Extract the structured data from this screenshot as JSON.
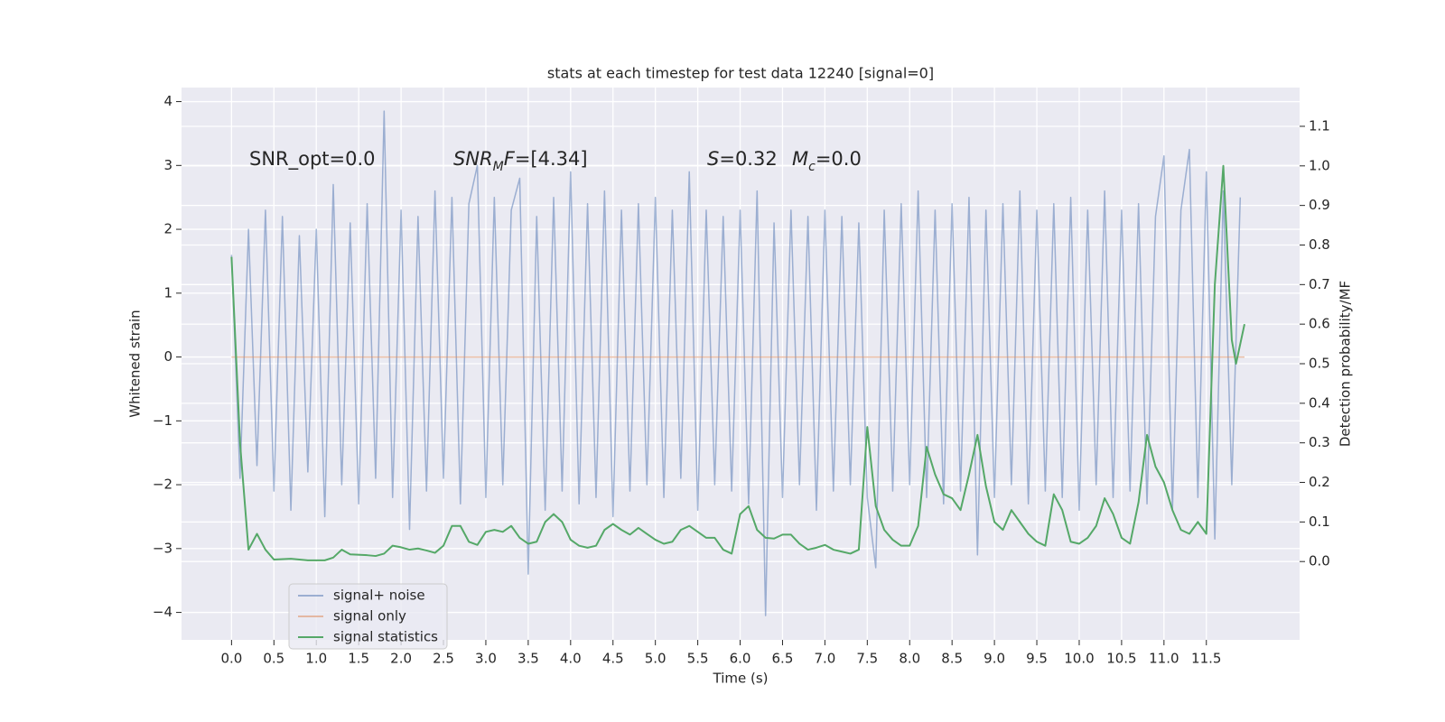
{
  "chart_data": {
    "type": "line",
    "title": "stats at each timestep for test data 12240 [signal=0]",
    "xlabel": "Time (s)",
    "ylabel": "Whitened strain",
    "y2label": "Detection probability/MF",
    "annotations": [
      [
        {
          "text": "SNR_opt=0.0",
          "italic": false,
          "sub": false
        }
      ],
      [
        {
          "text": "SNR",
          "italic": true,
          "sub": false
        },
        {
          "text": "M",
          "italic": true,
          "sub": true
        },
        {
          "text": "F",
          "italic": true,
          "sub": false
        },
        {
          "text": "=[4.34]",
          "italic": false,
          "sub": false
        }
      ],
      [
        {
          "text": "S",
          "italic": true,
          "sub": false
        },
        {
          "text": "=0.32",
          "italic": false,
          "sub": false
        }
      ],
      [
        {
          "text": "M",
          "italic": true,
          "sub": false
        },
        {
          "text": "c",
          "italic": true,
          "sub": true
        },
        {
          "text": "=0.0",
          "italic": false,
          "sub": false
        }
      ]
    ],
    "xlim": [
      -0.59,
      12.6
    ],
    "ylim": [
      -4.43,
      4.22
    ],
    "y2lim": [
      -0.198,
      1.198
    ],
    "xticks": [
      {
        "value": 0,
        "label": "0.0"
      },
      {
        "value": 0.5,
        "label": "0.5"
      },
      {
        "value": 1,
        "label": "1.0"
      },
      {
        "value": 1.5,
        "label": "1.5"
      },
      {
        "value": 2,
        "label": "2.0"
      },
      {
        "value": 2.5,
        "label": "2.5"
      },
      {
        "value": 3,
        "label": "3.0"
      },
      {
        "value": 3.5,
        "label": "3.5"
      },
      {
        "value": 4,
        "label": "4.0"
      },
      {
        "value": 4.5,
        "label": "4.5"
      },
      {
        "value": 5,
        "label": "5.0"
      },
      {
        "value": 5.5,
        "label": "5.5"
      },
      {
        "value": 6,
        "label": "6.0"
      },
      {
        "value": 6.5,
        "label": "6.5"
      },
      {
        "value": 7,
        "label": "7.0"
      },
      {
        "value": 7.5,
        "label": "7.5"
      },
      {
        "value": 8,
        "label": "8.0"
      },
      {
        "value": 8.5,
        "label": "8.5"
      },
      {
        "value": 9,
        "label": "9.0"
      },
      {
        "value": 9.5,
        "label": "9.5"
      },
      {
        "value": 10,
        "label": "10.0"
      },
      {
        "value": 10.5,
        "label": "10.5"
      },
      {
        "value": 11,
        "label": "11.0"
      },
      {
        "value": 11.5,
        "label": "11.5"
      }
    ],
    "yticks": [
      {
        "value": -4,
        "label": "−4"
      },
      {
        "value": -3,
        "label": "−3"
      },
      {
        "value": -2,
        "label": "−2"
      },
      {
        "value": -1,
        "label": "−1"
      },
      0,
      1,
      2,
      3,
      4
    ],
    "y2ticks": [
      {
        "value": 0,
        "label": "0.0"
      },
      {
        "value": 0.1,
        "label": "0.1"
      },
      {
        "value": 0.2,
        "label": "0.2"
      },
      {
        "value": 0.3,
        "label": "0.3"
      },
      {
        "value": 0.4,
        "label": "0.4"
      },
      {
        "value": 0.5,
        "label": "0.5"
      },
      {
        "value": 0.6,
        "label": "0.6"
      },
      {
        "value": 0.7,
        "label": "0.7"
      },
      {
        "value": 0.8,
        "label": "0.8"
      },
      {
        "value": 0.9,
        "label": "0.9"
      },
      {
        "value": 1,
        "label": "1.0"
      },
      {
        "value": 1.1,
        "label": "1.1"
      }
    ],
    "grid": true,
    "legend": "lower left",
    "series": [
      {
        "name": "signal+ noise",
        "color": "#4c72b0",
        "opacity": 0.5,
        "x": [
          0,
          0.1,
          0.2,
          0.3,
          0.4,
          0.5,
          0.6,
          0.7,
          0.8,
          0.9,
          1,
          1.1,
          1.2,
          1.3,
          1.4,
          1.5,
          1.6,
          1.7,
          1.8,
          1.9,
          2,
          2.1,
          2.2,
          2.3,
          2.4,
          2.5,
          2.6,
          2.7,
          2.8,
          2.9,
          3,
          3.1,
          3.2,
          3.3,
          3.4,
          3.5,
          3.6,
          3.7,
          3.8,
          3.9,
          4,
          4.1,
          4.2,
          4.3,
          4.4,
          4.5,
          4.6,
          4.7,
          4.8,
          4.9,
          5,
          5.1,
          5.2,
          5.3,
          5.4,
          5.5,
          5.6,
          5.7,
          5.8,
          5.9,
          6,
          6.1,
          6.2,
          6.3,
          6.4,
          6.5,
          6.6,
          6.7,
          6.8,
          6.9,
          7,
          7.1,
          7.2,
          7.3,
          7.4,
          7.5,
          7.6,
          7.7,
          7.8,
          7.9,
          8,
          8.1,
          8.2,
          8.3,
          8.4,
          8.5,
          8.6,
          8.7,
          8.8,
          8.9,
          9,
          9.1,
          9.2,
          9.3,
          9.4,
          9.5,
          9.6,
          9.7,
          9.8,
          9.9,
          10,
          10.1,
          10.2,
          10.3,
          10.4,
          10.5,
          10.6,
          10.7,
          10.8,
          10.9,
          11,
          11.1,
          11.2,
          11.3,
          11.4,
          11.5,
          11.6,
          11.7,
          11.8,
          11.9
        ],
        "values": [
          1.6,
          -1.9,
          2.0,
          -1.7,
          2.3,
          -2.1,
          2.2,
          -2.4,
          1.9,
          -1.8,
          2.0,
          -2.5,
          2.7,
          -2.0,
          2.1,
          -2.3,
          2.4,
          -1.9,
          3.85,
          -2.2,
          2.3,
          -2.7,
          2.2,
          -2.1,
          2.6,
          -1.9,
          2.5,
          -2.3,
          2.4,
          3.0,
          -2.2,
          2.5,
          -2.0,
          2.3,
          2.8,
          -3.4,
          2.2,
          -2.4,
          2.5,
          -2.1,
          2.9,
          -2.3,
          2.4,
          -2.2,
          2.6,
          -2.5,
          2.3,
          -2.1,
          2.4,
          -2.0,
          2.5,
          -2.2,
          2.3,
          -1.9,
          2.9,
          -2.4,
          2.3,
          -2.0,
          2.2,
          -2.1,
          2.3,
          -2.3,
          2.6,
          -4.05,
          2.1,
          -2.2,
          2.3,
          -2.0,
          2.2,
          -2.4,
          2.3,
          -2.1,
          2.2,
          -2.0,
          2.1,
          -2.2,
          -3.3,
          2.3,
          -2.1,
          2.4,
          -2.0,
          2.6,
          -2.2,
          2.3,
          -2.3,
          2.4,
          -2.1,
          2.5,
          -3.1,
          2.3,
          -2.2,
          2.4,
          -2.0,
          2.6,
          -2.3,
          2.3,
          -2.1,
          2.4,
          -2.2,
          2.5,
          -2.4,
          2.3,
          -2.0,
          2.6,
          -2.2,
          2.3,
          -2.1,
          2.4,
          -2.3,
          2.2,
          3.15,
          -2.4,
          2.3,
          3.25,
          -2.2,
          2.9,
          -2.85,
          2.6,
          -2.0,
          2.5
        ]
      },
      {
        "name": "signal only",
        "color": "#dd8452",
        "opacity": 0.5,
        "x": [
          0,
          11.95
        ],
        "values": [
          0,
          0
        ]
      },
      {
        "name": "signal statistics",
        "color": "#55a868",
        "opacity": 1,
        "axis": "y2",
        "x": [
          0,
          0.1,
          0.2,
          0.3,
          0.4,
          0.5,
          0.7,
          0.9,
          1.1,
          1.2,
          1.3,
          1.4,
          1.6,
          1.7,
          1.8,
          1.9,
          2,
          2.1,
          2.2,
          2.3,
          2.4,
          2.5,
          2.6,
          2.7,
          2.8,
          2.9,
          3,
          3.1,
          3.2,
          3.3,
          3.4,
          3.5,
          3.6,
          3.7,
          3.8,
          3.9,
          4,
          4.1,
          4.2,
          4.3,
          4.4,
          4.5,
          4.6,
          4.7,
          4.8,
          4.9,
          5,
          5.1,
          5.2,
          5.3,
          5.4,
          5.5,
          5.6,
          5.7,
          5.8,
          5.9,
          6,
          6.1,
          6.2,
          6.3,
          6.4,
          6.5,
          6.6,
          6.7,
          6.8,
          6.9,
          7,
          7.1,
          7.2,
          7.3,
          7.4,
          7.5,
          7.6,
          7.7,
          7.8,
          7.9,
          8,
          8.1,
          8.2,
          8.3,
          8.4,
          8.5,
          8.6,
          8.7,
          8.8,
          8.9,
          9,
          9.1,
          9.2,
          9.3,
          9.4,
          9.5,
          9.6,
          9.7,
          9.8,
          9.9,
          10,
          10.1,
          10.2,
          10.3,
          10.4,
          10.5,
          10.6,
          10.7,
          10.8,
          10.9,
          11,
          11.1,
          11.2,
          11.3,
          11.4,
          11.5,
          11.6,
          11.7,
          11.8,
          11.85,
          11.95
        ],
        "values": [
          0.77,
          0.3,
          0.03,
          0.07,
          0.03,
          0.005,
          0.007,
          0.003,
          0.003,
          0.01,
          0.03,
          0.018,
          0.016,
          0.014,
          0.02,
          0.04,
          0.036,
          0.03,
          0.033,
          0.028,
          0.022,
          0.04,
          0.09,
          0.09,
          0.05,
          0.042,
          0.075,
          0.08,
          0.075,
          0.09,
          0.06,
          0.045,
          0.05,
          0.1,
          0.12,
          0.1,
          0.055,
          0.04,
          0.035,
          0.04,
          0.08,
          0.095,
          0.08,
          0.068,
          0.085,
          0.07,
          0.055,
          0.045,
          0.05,
          0.08,
          0.09,
          0.075,
          0.06,
          0.06,
          0.03,
          0.02,
          0.12,
          0.14,
          0.08,
          0.06,
          0.058,
          0.068,
          0.068,
          0.045,
          0.03,
          0.035,
          0.042,
          0.03,
          0.025,
          0.02,
          0.03,
          0.34,
          0.14,
          0.08,
          0.055,
          0.04,
          0.04,
          0.09,
          0.29,
          0.22,
          0.17,
          0.16,
          0.13,
          0.22,
          0.32,
          0.19,
          0.1,
          0.08,
          0.13,
          0.1,
          0.07,
          0.05,
          0.04,
          0.17,
          0.13,
          0.05,
          0.045,
          0.06,
          0.09,
          0.16,
          0.12,
          0.06,
          0.045,
          0.15,
          0.32,
          0.24,
          0.2,
          0.13,
          0.08,
          0.07,
          0.1,
          0.07,
          0.7,
          1.0,
          0.56,
          0.5,
          0.6
        ]
      }
    ]
  }
}
